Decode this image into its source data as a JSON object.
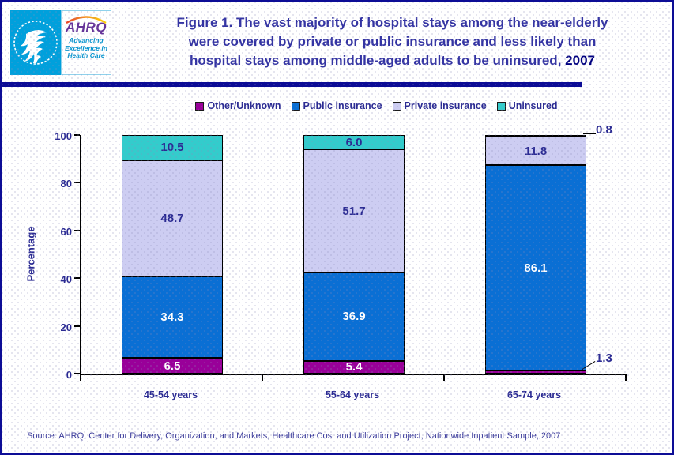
{
  "logo": {
    "ahrq": "AHRQ",
    "tagline_lines": [
      "Advancing",
      "Excellence in",
      "Health Care"
    ]
  },
  "header": {
    "title_lines": [
      "Figure 1. The vast majority of hospital stays among the near-elderly",
      "were covered by private or public insurance and less likely than",
      "hospital stays among middle-aged adults to be uninsured,"
    ],
    "title_year": "2007"
  },
  "chart_data": {
    "type": "bar",
    "stacked": true,
    "categories": [
      "45-54 years",
      "55-64 years",
      "65-74 years"
    ],
    "series": [
      {
        "name": "Other/Unknown",
        "color": "#990099",
        "values": [
          6.5,
          5.4,
          1.3
        ]
      },
      {
        "name": "Public insurance",
        "color": "#0a6fd4",
        "values": [
          34.3,
          36.9,
          86.1
        ]
      },
      {
        "name": "Private insurance",
        "color": "#cdcdf2",
        "values": [
          48.7,
          51.7,
          11.8
        ]
      },
      {
        "name": "Uninsured",
        "color": "#33cccc",
        "values": [
          10.5,
          6.0,
          0.8
        ]
      }
    ],
    "ylabel": "Percentage",
    "xlabel": "",
    "ylim": [
      0,
      100
    ],
    "yticks": [
      0,
      20,
      40,
      60,
      80,
      100
    ],
    "grid": false,
    "legend_position": "top",
    "outside_labels": [
      {
        "category": 2,
        "series": 0
      },
      {
        "category": 2,
        "series": 3
      }
    ],
    "label_colors": {
      "on_dark": "#ffffff",
      "on_light": "#2b2b93"
    }
  },
  "source": {
    "text": "Source: AHRQ, Center for Delivery, Organization, and Markets, Healthcare Cost and Utilization Project, Nationwide Inpatient Sample, 2007"
  },
  "accents": {
    "border_navy": "#0d0d96",
    "title_navy": "#3434a3",
    "text_navy": "#2b2b93",
    "hhs_cyan": "#00a0dc",
    "ahrq_purple": "#663399",
    "tagline_blue": "#0795cf"
  }
}
